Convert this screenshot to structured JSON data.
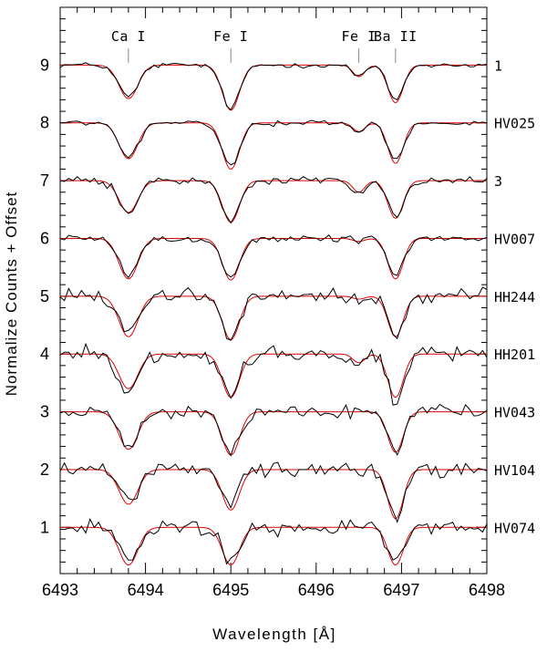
{
  "chart_data": {
    "type": "line",
    "xlabel": "Wavelength [Å]",
    "ylabel": "Normalize Counts + Offset",
    "xlim": [
      6493,
      6498
    ],
    "ylim": [
      0.2,
      10.0
    ],
    "x_ticks": [
      6493,
      6494,
      6495,
      6496,
      6497,
      6498
    ],
    "y_ticks": [
      1,
      2,
      3,
      4,
      5,
      6,
      7,
      8,
      9
    ],
    "x_tick_labels": [
      "6493",
      "6494",
      "6495",
      "6496",
      "6497",
      "6498"
    ],
    "y_tick_labels": [
      "1",
      "2",
      "3",
      "4",
      "5",
      "6",
      "7",
      "8",
      "9"
    ],
    "line_labels": [
      {
        "label": "Ca I",
        "x": 6493.8
      },
      {
        "label": "Fe I",
        "x": 6495.0
      },
      {
        "label": "Fe I",
        "x": 6496.5
      },
      {
        "label": "Ba II",
        "x": 6496.93
      }
    ],
    "colors": {
      "observed": "#000000",
      "model": "#e00000"
    },
    "series": [
      {
        "name": "1",
        "offset": 9,
        "depths": [
          0.55,
          0.75,
          0.2,
          0.6
        ],
        "model_depths": [
          0.58,
          0.78,
          0.2,
          0.65
        ],
        "noise": 0.05
      },
      {
        "name": "HV025",
        "offset": 8,
        "depths": [
          0.6,
          0.75,
          0.15,
          0.65
        ],
        "model_depths": [
          0.62,
          0.8,
          0.15,
          0.7
        ],
        "noise": 0.05
      },
      {
        "name": "3",
        "offset": 7,
        "depths": [
          0.55,
          0.7,
          0.2,
          0.6
        ],
        "model_depths": [
          0.55,
          0.72,
          0.2,
          0.65
        ],
        "noise": 0.07
      },
      {
        "name": "HV007",
        "offset": 6,
        "depths": [
          0.65,
          0.7,
          0.05,
          0.65
        ],
        "model_depths": [
          0.7,
          0.72,
          0.05,
          0.7
        ],
        "noise": 0.07
      },
      {
        "name": "HH244",
        "offset": 5,
        "depths": [
          0.65,
          0.7,
          0.1,
          0.7
        ],
        "model_depths": [
          0.7,
          0.75,
          0.05,
          0.7
        ],
        "noise": 0.14
      },
      {
        "name": "HH201",
        "offset": 4,
        "depths": [
          0.7,
          0.7,
          0.2,
          0.8
        ],
        "model_depths": [
          0.6,
          0.75,
          0.15,
          0.75
        ],
        "noise": 0.14
      },
      {
        "name": "HV043",
        "offset": 3,
        "depths": [
          0.6,
          0.7,
          0.0,
          0.65
        ],
        "model_depths": [
          0.65,
          0.75,
          0.0,
          0.7
        ],
        "noise": 0.13
      },
      {
        "name": "HV104",
        "offset": 2,
        "depths": [
          0.5,
          0.6,
          0.05,
          0.9
        ],
        "model_depths": [
          0.6,
          0.7,
          0.0,
          0.85
        ],
        "noise": 0.14
      },
      {
        "name": "HV074",
        "offset": 1,
        "depths": [
          0.55,
          0.6,
          0.0,
          0.6
        ],
        "model_depths": [
          0.65,
          0.65,
          0.0,
          0.65
        ],
        "noise": 0.13
      }
    ],
    "line_centers": [
      6493.8,
      6495.0,
      6496.5,
      6496.93
    ],
    "line_widths": [
      0.11,
      0.1,
      0.07,
      0.09
    ],
    "grid": false
  }
}
